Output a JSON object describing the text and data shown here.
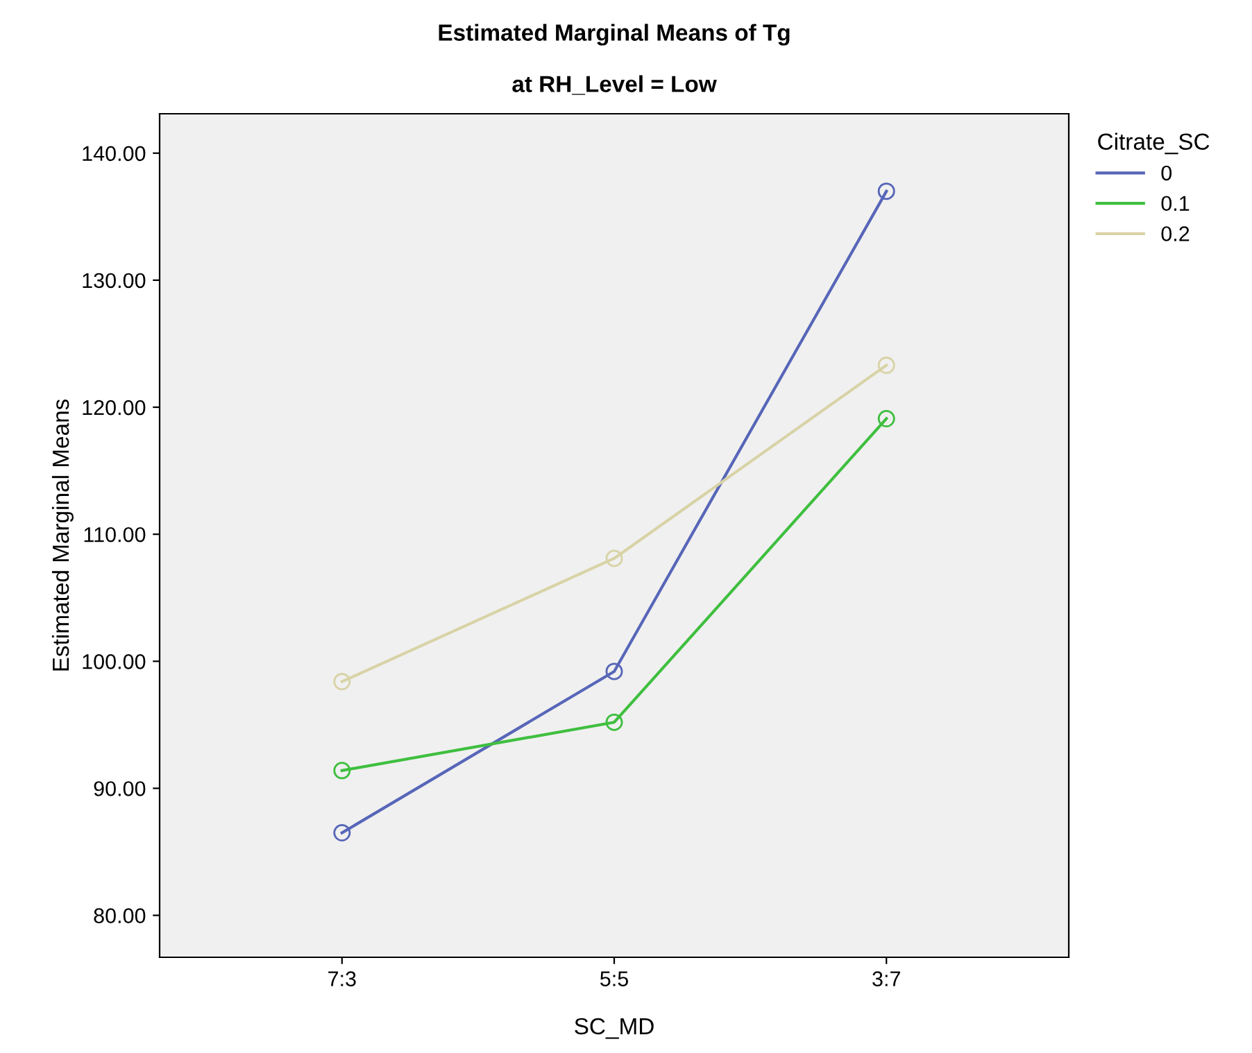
{
  "chart_data": {
    "type": "line",
    "title": "Estimated Marginal Means of Tg",
    "subtitle": "at RH_Level = Low",
    "xlabel": "SC_MD",
    "ylabel": "Estimated Marginal Means",
    "legend_title": "Citrate_SC",
    "categories": [
      "7:3",
      "5:5",
      "3:7"
    ],
    "series": [
      {
        "name": "0",
        "color": "#5766b8",
        "values": [
          86.5,
          99.2,
          137.0
        ]
      },
      {
        "name": "0.1",
        "color": "#3fbf3f",
        "values": [
          91.4,
          95.2,
          119.1
        ]
      },
      {
        "name": "0.2",
        "color": "#d8d3a6",
        "values": [
          98.4,
          108.1,
          123.3
        ]
      }
    ],
    "ylim": [
      76.7,
      143.1
    ],
    "yticks": [
      {
        "value": 80,
        "label": "80.00"
      },
      {
        "value": 90,
        "label": "90.00"
      },
      {
        "value": 100,
        "label": "100.00"
      },
      {
        "value": 110,
        "label": "110.00"
      },
      {
        "value": 120,
        "label": "120.00"
      },
      {
        "value": 130,
        "label": "130.00"
      },
      {
        "value": 140,
        "label": "140.00"
      }
    ],
    "grid": false,
    "legend": "top right",
    "marker": "circle",
    "line_style": "solid"
  }
}
